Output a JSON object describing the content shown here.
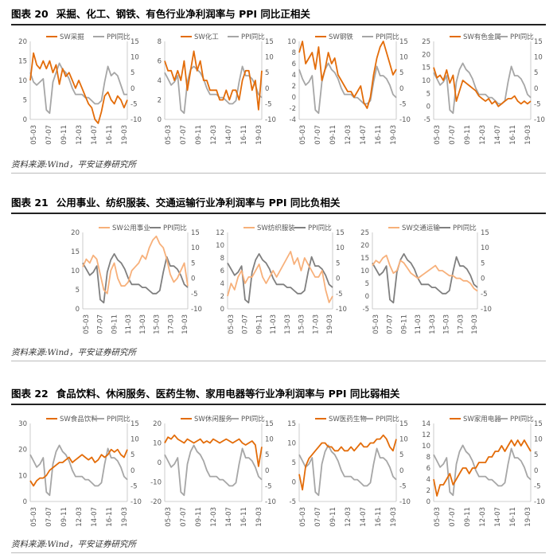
{
  "figures": [
    {
      "num": "图表 20",
      "title": "采掘、化工、钢铁、有色行业净利润率与 PPI 同比正相关",
      "source": "资料来源:Wind，平安证券研究所"
    },
    {
      "num": "图表 21",
      "title": "公用事业、纺织服装、交通运输行业净利润率与 PPI 同比负相关",
      "source": "资料来源:Wind，平安证券研究所"
    },
    {
      "num": "图表 22",
      "title": "食品饮料、休闲服务、医药生物、家用电器等行业净利润率与 PPI 同比弱相关",
      "source": "资料来源:Wind，平安证券研究所"
    }
  ],
  "colors": {
    "industry_dark": "#E36C09",
    "industry_light": "#F7B07A",
    "ppi_gray": "#A6A6A6",
    "ppi_dark": "#7F7F7F"
  },
  "chart_data": [
    {
      "type": "line",
      "figure": 0,
      "series": [
        {
          "name": "SW采掘",
          "values": [
            10,
            17,
            14,
            13,
            15,
            13,
            15,
            12,
            14,
            9,
            13,
            11,
            12,
            10,
            8,
            10,
            8,
            6,
            4,
            3,
            0,
            -1,
            2,
            6,
            7,
            5,
            4,
            6,
            5,
            3,
            5
          ]
        },
        {
          "name": "PPI同比",
          "values": [
            5,
            2,
            1,
            2,
            3,
            -7,
            -8,
            2,
            5,
            8,
            6,
            5,
            3,
            0,
            -2,
            -2,
            -2,
            -3,
            -3,
            -4,
            -5,
            -5,
            -4,
            2,
            7,
            4,
            5,
            4,
            1,
            -2,
            -2
          ]
        }
      ],
      "x_ticks": [
        "05-03",
        "07-07",
        "09-11",
        "12-03",
        "14-07",
        "16-11",
        "19-03"
      ],
      "left_axis": {
        "ticks": [
          "0",
          "5",
          "10",
          "15",
          "20"
        ],
        "range": [
          0,
          20
        ]
      },
      "right_axis": {
        "ticks": [
          "-10",
          "-5",
          "0",
          "5",
          "10",
          "15"
        ],
        "range": [
          -10,
          15
        ]
      }
    },
    {
      "type": "line",
      "figure": 0,
      "series": [
        {
          "name": "SW化工",
          "values": [
            6,
            5,
            5,
            4,
            5,
            4,
            6,
            3,
            5,
            7,
            5,
            6,
            4,
            4,
            3,
            3,
            3,
            2,
            2,
            3,
            2,
            3,
            3,
            2,
            4,
            5,
            5,
            3,
            4,
            1,
            5
          ]
        },
        {
          "name": "PPI同比",
          "values": [
            5,
            3,
            1,
            2,
            4,
            -7,
            -8,
            2,
            6,
            7,
            6,
            5,
            3,
            0,
            -2,
            -2,
            -2,
            -3,
            -3,
            -4,
            -5,
            -5,
            -4,
            2,
            7,
            4,
            4,
            3,
            1,
            -2,
            -3
          ]
        }
      ],
      "x_ticks": [
        "05-03",
        "07-07",
        "09-11",
        "12-03",
        "14-07",
        "16-11",
        "19-03"
      ],
      "left_axis": {
        "ticks": [
          "0",
          "2",
          "4",
          "6",
          "8"
        ],
        "range": [
          0,
          8
        ]
      },
      "right_axis": {
        "ticks": [
          "-10",
          "-5",
          "0",
          "5",
          "10",
          "15"
        ],
        "range": [
          -10,
          15
        ]
      }
    },
    {
      "type": "line",
      "figure": 0,
      "series": [
        {
          "name": "SW钢铁",
          "values": [
            8,
            10,
            6,
            7,
            8,
            5,
            9,
            3,
            5,
            8,
            6,
            7,
            4,
            3,
            2,
            1,
            1,
            0,
            1,
            2,
            -1,
            -2,
            0,
            4,
            7,
            9,
            10,
            8,
            6,
            4,
            5
          ]
        },
        {
          "name": "PPI同比",
          "values": [
            6,
            3,
            1,
            2,
            4,
            -7,
            -8,
            2,
            6,
            8,
            6,
            5,
            3,
            0,
            -2,
            -2,
            -2,
            -3,
            -3,
            -4,
            -5,
            -5,
            -4,
            2,
            7,
            4,
            4,
            3,
            1,
            -2,
            -3
          ]
        }
      ],
      "x_ticks": [
        "05-03",
        "07-07",
        "09-11",
        "12-03",
        "14-07",
        "16-11",
        "19-03"
      ],
      "left_axis": {
        "ticks": [
          "-4",
          "-2",
          "0",
          "2",
          "4",
          "6",
          "8",
          "10"
        ],
        "range": [
          -4,
          10
        ]
      },
      "right_axis": {
        "ticks": [
          "-10",
          "-5",
          "0",
          "5",
          "10",
          "15"
        ],
        "range": [
          -10,
          15
        ]
      }
    },
    {
      "type": "line",
      "figure": 0,
      "series": [
        {
          "name": "SW有色金属",
          "values": [
            15,
            11,
            12,
            10,
            14,
            9,
            12,
            2,
            6,
            10,
            9,
            8,
            7,
            6,
            4,
            3,
            2,
            3,
            1,
            2,
            0,
            1,
            2,
            3,
            3,
            4,
            2,
            1,
            2,
            1,
            2
          ]
        },
        {
          "name": "PPI同比",
          "values": [
            5,
            3,
            1,
            2,
            4,
            -7,
            -8,
            2,
            6,
            8,
            6,
            5,
            3,
            0,
            -2,
            -2,
            -2,
            -3,
            -3,
            -4,
            -5,
            -5,
            -4,
            2,
            7,
            4,
            4,
            3,
            1,
            -2,
            -3
          ]
        }
      ],
      "x_ticks": [
        "05-03",
        "07-07",
        "09-11",
        "12-03",
        "14-07",
        "16-11",
        "19-03"
      ],
      "left_axis": {
        "ticks": [
          "-5",
          "0",
          "5",
          "10",
          "15",
          "20",
          "25"
        ],
        "range": [
          -5,
          25
        ]
      },
      "right_axis": {
        "ticks": [
          "-10",
          "-5",
          "0",
          "5",
          "10",
          "15"
        ],
        "range": [
          -10,
          15
        ]
      }
    },
    {
      "type": "line",
      "figure": 1,
      "series": [
        {
          "name": "SW公用事业",
          "values": [
            11,
            13,
            12,
            14,
            13,
            9,
            5,
            4,
            10,
            12,
            8,
            6,
            6,
            7,
            10,
            11,
            12,
            14,
            13,
            16,
            18,
            19,
            17,
            16,
            13,
            9,
            7,
            8,
            10,
            12,
            6
          ]
        },
        {
          "name": "PPI同比",
          "values": [
            5,
            3,
            1,
            2,
            4,
            -7,
            -8,
            2,
            6,
            8,
            6,
            5,
            3,
            0,
            -2,
            -2,
            -2,
            -3,
            -3,
            -4,
            -5,
            -5,
            -4,
            2,
            7,
            4,
            4,
            3,
            1,
            -2,
            -3
          ]
        }
      ],
      "x_ticks": [
        "05-03",
        "07-07",
        "09-11",
        "11-03",
        "13-03",
        "15-03",
        "17-03",
        "19-03"
      ],
      "left_axis": {
        "ticks": [
          "0",
          "5",
          "10",
          "15",
          "20"
        ],
        "range": [
          0,
          20
        ]
      },
      "right_axis": {
        "ticks": [
          "-10",
          "-5",
          "0",
          "5",
          "10",
          "15"
        ],
        "range": [
          -10,
          15
        ]
      }
    },
    {
      "type": "line",
      "figure": 1,
      "series": [
        {
          "name": "SW纺织服装",
          "values": [
            2,
            4,
            3,
            5,
            6,
            4,
            5,
            5,
            6,
            7,
            5,
            4,
            5,
            6,
            5,
            6,
            7,
            8,
            9,
            7,
            8,
            6,
            8,
            7,
            6,
            5,
            5,
            6,
            3,
            1,
            2
          ]
        },
        {
          "name": "PPI同比",
          "values": [
            5,
            3,
            1,
            2,
            4,
            -7,
            -8,
            2,
            6,
            8,
            6,
            5,
            3,
            0,
            -2,
            -2,
            -2,
            -3,
            -3,
            -4,
            -5,
            -5,
            -4,
            2,
            7,
            4,
            4,
            3,
            1,
            -2,
            -3
          ]
        }
      ],
      "x_ticks": [
        "05-03",
        "07-07",
        "09-11",
        "11-03",
        "13-03",
        "15-03",
        "17-03",
        "19-03"
      ],
      "left_axis": {
        "ticks": [
          "0",
          "2",
          "4",
          "6",
          "8",
          "10",
          "12"
        ],
        "range": [
          0,
          12
        ]
      },
      "right_axis": {
        "ticks": [
          "-10",
          "-5",
          "0",
          "5",
          "10",
          "15"
        ],
        "range": [
          -10,
          15
        ]
      }
    },
    {
      "type": "line",
      "figure": 1,
      "series": [
        {
          "name": "SW交通运输",
          "values": [
            12,
            14,
            13,
            15,
            16,
            12,
            9,
            10,
            14,
            13,
            11,
            9,
            8,
            7,
            8,
            9,
            10,
            11,
            12,
            10,
            10,
            9,
            8,
            8,
            7,
            7,
            6,
            6,
            5,
            3,
            2
          ]
        },
        {
          "name": "PPI同比",
          "values": [
            5,
            3,
            1,
            2,
            4,
            -7,
            -8,
            2,
            6,
            8,
            6,
            5,
            3,
            0,
            -2,
            -2,
            -2,
            -3,
            -3,
            -4,
            -5,
            -5,
            -4,
            2,
            7,
            4,
            4,
            3,
            1,
            -2,
            -3
          ]
        }
      ],
      "x_ticks": [
        "05-03",
        "07-07",
        "09-11",
        "11-03",
        "13-03",
        "15-03",
        "17-03",
        "19-03"
      ],
      "left_axis": {
        "ticks": [
          "-5",
          "0",
          "5",
          "10",
          "15",
          "20",
          "25"
        ],
        "range": [
          -5,
          25
        ]
      },
      "right_axis": {
        "ticks": [
          "-10",
          "-5",
          "0",
          "5",
          "10",
          "15"
        ],
        "range": [
          -10,
          15
        ]
      }
    },
    {
      "type": "line",
      "figure": 2,
      "series": [
        {
          "name": "SW食品饮料",
          "values": [
            8,
            6,
            8,
            9,
            9,
            10,
            12,
            13,
            14,
            15,
            15,
            16,
            17,
            15,
            16,
            17,
            18,
            17,
            16,
            17,
            15,
            16,
            18,
            17,
            18,
            20,
            19,
            20,
            18,
            17,
            20
          ]
        },
        {
          "name": "PPI同比",
          "values": [
            5,
            3,
            1,
            2,
            4,
            -7,
            -8,
            2,
            6,
            8,
            6,
            5,
            3,
            0,
            -2,
            -2,
            -2,
            -3,
            -3,
            -4,
            -5,
            -5,
            -4,
            2,
            7,
            4,
            4,
            3,
            1,
            -2,
            -3
          ]
        }
      ],
      "x_ticks": [
        "05-03",
        "07-07",
        "09-11",
        "12-03",
        "14-07",
        "16-11",
        "19-03"
      ],
      "left_axis": {
        "ticks": [
          "0",
          "10",
          "20",
          "30"
        ],
        "range": [
          0,
          30
        ]
      },
      "right_axis": {
        "ticks": [
          "-10",
          "-5",
          "0",
          "5",
          "10",
          "15"
        ],
        "range": [
          -10,
          15
        ]
      }
    },
    {
      "type": "line",
      "figure": 2,
      "series": [
        {
          "name": "SW休闲服务",
          "values": [
            10,
            13,
            12,
            14,
            12,
            11,
            10,
            12,
            11,
            10,
            11,
            12,
            10,
            11,
            10,
            12,
            11,
            10,
            11,
            12,
            11,
            10,
            11,
            12,
            10,
            9,
            10,
            11,
            9,
            -2,
            8
          ]
        },
        {
          "name": "PPI同比",
          "values": [
            5,
            3,
            1,
            2,
            4,
            -7,
            -8,
            2,
            6,
            8,
            6,
            5,
            3,
            0,
            -2,
            -2,
            -2,
            -3,
            -3,
            -4,
            -5,
            -5,
            -4,
            2,
            7,
            4,
            4,
            3,
            1,
            -2,
            -3
          ]
        }
      ],
      "x_ticks": [
        "05-03",
        "07-07",
        "09-11",
        "12-03",
        "14-07",
        "16-11",
        "19-03"
      ],
      "left_axis": {
        "ticks": [
          "-20",
          "-10",
          "0",
          "10",
          "20"
        ],
        "range": [
          -20,
          20
        ]
      },
      "right_axis": {
        "ticks": [
          "-10",
          "-5",
          "0",
          "5",
          "10",
          "15"
        ],
        "range": [
          -10,
          15
        ]
      }
    },
    {
      "type": "line",
      "figure": 2,
      "series": [
        {
          "name": "SW医药生物",
          "values": [
            2,
            -2,
            4,
            6,
            7,
            8,
            9,
            10,
            10,
            9,
            9,
            8,
            8,
            9,
            8,
            8,
            9,
            8,
            9,
            10,
            9,
            9,
            10,
            10,
            11,
            11,
            12,
            11,
            9,
            8,
            11
          ]
        },
        {
          "name": "PPI同比",
          "values": [
            5,
            3,
            1,
            2,
            4,
            -7,
            -8,
            2,
            6,
            8,
            6,
            5,
            3,
            0,
            -2,
            -2,
            -2,
            -3,
            -3,
            -4,
            -5,
            -5,
            -4,
            2,
            7,
            4,
            4,
            3,
            1,
            -2,
            -3
          ]
        }
      ],
      "x_ticks": [
        "05-03",
        "07-07",
        "09-11",
        "12-03",
        "14-07",
        "16-11",
        "19-03"
      ],
      "left_axis": {
        "ticks": [
          "-5",
          "0",
          "5",
          "10",
          "15"
        ],
        "range": [
          -5,
          15
        ]
      },
      "right_axis": {
        "ticks": [
          "-10",
          "-5",
          "0",
          "5",
          "10",
          "15"
        ],
        "range": [
          -10,
          15
        ]
      }
    },
    {
      "type": "line",
      "figure": 2,
      "series": [
        {
          "name": "SW家用电器",
          "values": [
            4,
            1,
            3,
            3,
            4,
            5,
            3,
            4,
            5,
            6,
            6,
            5,
            6,
            6,
            7,
            7,
            7,
            8,
            8,
            9,
            9,
            10,
            9,
            10,
            11,
            10,
            11,
            10,
            11,
            10,
            9
          ]
        },
        {
          "name": "PPI同比",
          "values": [
            5,
            3,
            1,
            2,
            4,
            -7,
            -8,
            2,
            6,
            8,
            6,
            5,
            3,
            0,
            -2,
            -2,
            -2,
            -3,
            -3,
            -4,
            -5,
            -5,
            -4,
            2,
            7,
            4,
            4,
            3,
            1,
            -2,
            -3
          ]
        }
      ],
      "x_ticks": [
        "05-03",
        "07-07",
        "09-11",
        "12-03",
        "14-07",
        "16-11",
        "19-03"
      ],
      "left_axis": {
        "ticks": [
          "0",
          "2",
          "4",
          "6",
          "8",
          "10",
          "12",
          "14"
        ],
        "range": [
          0,
          14
        ]
      },
      "right_axis": {
        "ticks": [
          "-10",
          "-5",
          "0",
          "5",
          "10",
          "15"
        ],
        "range": [
          -10,
          15
        ]
      }
    }
  ]
}
